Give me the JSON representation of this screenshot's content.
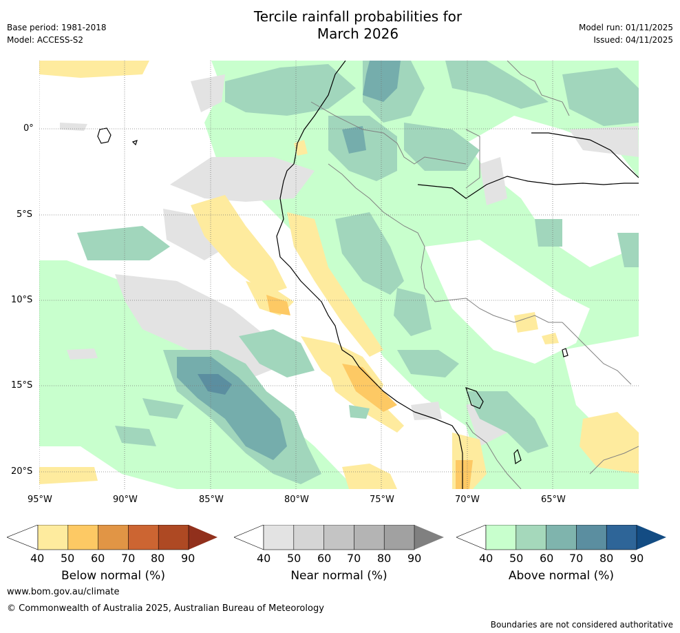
{
  "header": {
    "title_line1": "Tercile rainfall probabilities for",
    "title_line2": "March 2026",
    "base_period": "Base period: 1981-2018",
    "model": "Model: ACCESS-S2",
    "model_run": "Model run: 01/11/2025",
    "issued": "Issued: 04/11/2025"
  },
  "map": {
    "lon_labels": [
      "95°W",
      "90°W",
      "85°W",
      "80°W",
      "75°W",
      "70°W",
      "65°W"
    ],
    "lat_labels": [
      "0°",
      "5°S",
      "10°S",
      "15°S",
      "20°S"
    ],
    "colors": {
      "sea_white": "#ffffff",
      "near_grey": "#e3e3e3",
      "below_50": "#feeb9e",
      "below_60": "#fdc964",
      "above_50": "#c8ffcd",
      "above_60": "#a1d6bc",
      "above_70": "#75adac",
      "above_80": "#5b8ea0",
      "coast": "#000000",
      "border": "#808080"
    }
  },
  "colorbars": [
    {
      "label": "Below normal (%)",
      "ticks": [
        "40",
        "50",
        "60",
        "70",
        "80",
        "90"
      ],
      "colors": [
        "#ffffff",
        "#feeb9e",
        "#fdc964",
        "#e19545",
        "#cc6532",
        "#ae4923",
        "#91301c"
      ]
    },
    {
      "label": "Near normal (%)",
      "ticks": [
        "40",
        "50",
        "60",
        "70",
        "80",
        "90"
      ],
      "colors": [
        "#ffffff",
        "#e3e3e3",
        "#d5d5d5",
        "#c4c4c4",
        "#b4b4b4",
        "#a1a1a1",
        "#808080"
      ]
    },
    {
      "label": "Above normal (%)",
      "ticks": [
        "40",
        "50",
        "60",
        "70",
        "80",
        "90"
      ],
      "colors": [
        "#ffffff",
        "#c8ffcd",
        "#a5d8bb",
        "#7fb4ad",
        "#5b8ea0",
        "#2e6598",
        "#134c83"
      ]
    }
  ],
  "footer": {
    "website": "www.bom.gov.au/climate",
    "copyright": "© Commonwealth of Australia 2025, Australian Bureau of Meteorology",
    "disclaimer": "Boundaries are not considered authoritative"
  }
}
